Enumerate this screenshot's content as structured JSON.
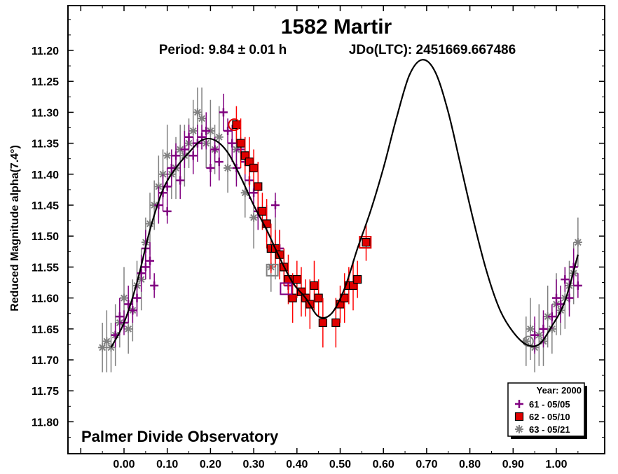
{
  "chart_data": {
    "type": "scatter",
    "title": "1582 Martir",
    "period_label": "Period: 9.84 ± 0.01 h",
    "jdo_label": "JDo(LTC): 2451669.667486",
    "ylabel": "Reduced Magnitude alpha(7.4°)",
    "xlabel": "",
    "footer": "Palmer Divide Observatory",
    "xlim": [
      -0.13,
      1.09
    ],
    "ylim": [
      11.85,
      11.14
    ],
    "xticks": [
      0.0,
      0.1,
      0.2,
      0.3,
      0.4,
      0.5,
      0.6,
      0.7,
      0.8,
      0.9,
      1.0
    ],
    "xtick_labels": [
      "0.00",
      "0.10",
      "0.20",
      "0.30",
      "0.40",
      "0.50",
      "0.60",
      "0.70",
      "0.80",
      "0.90",
      "1.00"
    ],
    "yticks": [
      11.2,
      11.25,
      11.3,
      11.35,
      11.4,
      11.45,
      11.5,
      11.55,
      11.6,
      11.65,
      11.7,
      11.75,
      11.8
    ],
    "ytick_labels": [
      "11.20",
      "11.25",
      "11.30",
      "11.35",
      "11.40",
      "11.45",
      "11.50",
      "11.55",
      "11.60",
      "11.65",
      "11.70",
      "11.75",
      "11.80"
    ],
    "legend": {
      "title": "Year: 2000",
      "position": "bottom-right",
      "entries": [
        {
          "label": "61 - 05/05",
          "marker": "plus",
          "color": "#800080"
        },
        {
          "label": "62 - 05/10",
          "marker": "square",
          "color": "#e00000"
        },
        {
          "label": "63 - 05/21",
          "marker": "asterisk",
          "color": "#808080"
        }
      ]
    },
    "fit_curve": {
      "name": "Fourier fit",
      "color": "#000000",
      "x": [
        -0.03,
        0.0,
        0.03,
        0.06,
        0.09,
        0.12,
        0.15,
        0.18,
        0.21,
        0.24,
        0.27,
        0.3,
        0.33,
        0.36,
        0.39,
        0.42,
        0.45,
        0.48,
        0.51,
        0.54,
        0.57,
        0.6,
        0.63,
        0.66,
        0.69,
        0.72,
        0.75,
        0.78,
        0.81,
        0.84,
        0.87,
        0.9,
        0.93,
        0.96,
        0.99,
        1.02,
        1.05
      ],
      "y": [
        11.68,
        11.64,
        11.575,
        11.49,
        11.425,
        11.39,
        11.365,
        11.345,
        11.345,
        11.365,
        11.405,
        11.45,
        11.49,
        11.535,
        11.575,
        11.6,
        11.63,
        11.625,
        11.585,
        11.52,
        11.46,
        11.39,
        11.31,
        11.24,
        11.215,
        11.235,
        11.3,
        11.39,
        11.48,
        11.56,
        11.62,
        11.655,
        11.675,
        11.675,
        11.645,
        11.605,
        11.53
      ]
    },
    "series": [
      {
        "name": "61 - 05/05",
        "marker": "plus",
        "color": "#800080",
        "x": [
          -0.02,
          -0.01,
          0.0,
          0.01,
          0.02,
          0.03,
          0.04,
          0.05,
          0.05,
          0.06,
          0.07,
          0.08,
          0.09,
          0.1,
          0.1,
          0.11,
          0.12,
          0.13,
          0.14,
          0.15,
          0.16,
          0.17,
          0.18,
          0.19,
          0.2,
          0.21,
          0.22,
          0.23,
          0.24,
          0.25,
          0.26,
          0.27,
          0.28,
          0.29,
          0.3,
          0.31,
          0.33,
          0.35,
          0.36,
          0.37,
          0.38,
          0.95,
          0.97,
          0.99,
          1.0,
          1.01,
          1.02,
          1.03,
          1.04,
          1.05
        ],
        "y": [
          11.66,
          11.63,
          11.64,
          11.61,
          11.62,
          11.6,
          11.56,
          11.55,
          11.52,
          11.54,
          11.58,
          11.45,
          11.43,
          11.46,
          11.42,
          11.39,
          11.37,
          11.41,
          11.36,
          11.34,
          11.37,
          11.35,
          11.34,
          11.33,
          11.39,
          11.36,
          11.38,
          11.3,
          11.33,
          11.35,
          11.39,
          11.36,
          11.38,
          11.41,
          11.43,
          11.46,
          11.48,
          11.45,
          11.52,
          11.55,
          11.58,
          11.66,
          11.65,
          11.63,
          11.6,
          11.61,
          11.57,
          11.6,
          11.55,
          11.58
        ],
        "err": [
          0.02,
          0.03,
          0.02,
          0.03,
          0.02,
          0.03,
          0.03,
          0.02,
          0.03,
          0.03,
          0.02,
          0.03,
          0.03,
          0.02,
          0.03,
          0.03,
          0.02,
          0.03,
          0.03,
          0.02,
          0.03,
          0.03,
          0.02,
          0.03,
          0.03,
          0.02,
          0.03,
          0.03,
          0.02,
          0.03,
          0.03,
          0.02,
          0.03,
          0.03,
          0.02,
          0.03,
          0.03,
          0.02,
          0.03,
          0.03,
          0.02,
          0.03,
          0.03,
          0.02,
          0.03,
          0.03,
          0.02,
          0.03,
          0.03,
          0.02
        ]
      },
      {
        "name": "62 - 05/10",
        "marker": "square",
        "color": "#e00000",
        "x": [
          0.26,
          0.27,
          0.28,
          0.29,
          0.3,
          0.31,
          0.32,
          0.33,
          0.34,
          0.35,
          0.36,
          0.37,
          0.38,
          0.39,
          0.4,
          0.41,
          0.42,
          0.43,
          0.44,
          0.45,
          0.46,
          0.49,
          0.5,
          0.51,
          0.52,
          0.53,
          0.54,
          0.56
        ],
        "y": [
          11.32,
          11.35,
          11.37,
          11.38,
          11.39,
          11.42,
          11.46,
          11.48,
          11.52,
          11.52,
          11.53,
          11.55,
          11.57,
          11.6,
          11.57,
          11.59,
          11.6,
          11.61,
          11.58,
          11.6,
          11.64,
          11.64,
          11.61,
          11.6,
          11.58,
          11.58,
          11.57,
          11.51
        ],
        "err": [
          0.03,
          0.04,
          0.03,
          0.04,
          0.03,
          0.04,
          0.03,
          0.04,
          0.04,
          0.03,
          0.04,
          0.03,
          0.04,
          0.04,
          0.03,
          0.04,
          0.03,
          0.04,
          0.04,
          0.03,
          0.04,
          0.04,
          0.03,
          0.04,
          0.03,
          0.04,
          0.03,
          0.03
        ]
      },
      {
        "name": "63 - 05/21",
        "marker": "asterisk",
        "color": "#808080",
        "x": [
          -0.05,
          -0.04,
          -0.03,
          -0.02,
          -0.01,
          0.0,
          0.01,
          0.02,
          0.03,
          0.04,
          0.05,
          0.06,
          0.07,
          0.08,
          0.09,
          0.1,
          0.11,
          0.12,
          0.13,
          0.14,
          0.15,
          0.16,
          0.17,
          0.18,
          0.19,
          0.2,
          0.21,
          0.22,
          0.24,
          0.26,
          0.28,
          0.3,
          0.34,
          0.35,
          0.93,
          0.94,
          0.95,
          0.96,
          0.97,
          0.98,
          0.99,
          1.0,
          1.01,
          1.02,
          1.03,
          1.04,
          1.05
        ],
        "y": [
          11.68,
          11.67,
          11.68,
          11.66,
          11.64,
          11.6,
          11.65,
          11.62,
          11.58,
          11.57,
          11.51,
          11.48,
          11.45,
          11.42,
          11.4,
          11.37,
          11.4,
          11.39,
          11.36,
          11.37,
          11.35,
          11.33,
          11.3,
          11.31,
          11.35,
          11.33,
          11.36,
          11.34,
          11.39,
          11.36,
          11.43,
          11.47,
          11.55,
          11.52,
          11.67,
          11.65,
          11.68,
          11.66,
          11.67,
          11.63,
          11.65,
          11.61,
          11.62,
          11.6,
          11.58,
          11.56,
          11.51
        ],
        "err": [
          0.04,
          0.05,
          0.04,
          0.05,
          0.04,
          0.05,
          0.04,
          0.05,
          0.04,
          0.05,
          0.04,
          0.05,
          0.04,
          0.05,
          0.04,
          0.05,
          0.04,
          0.05,
          0.04,
          0.05,
          0.04,
          0.05,
          0.04,
          0.05,
          0.04,
          0.05,
          0.04,
          0.05,
          0.04,
          0.05,
          0.04,
          0.05,
          0.04,
          0.05,
          0.04,
          0.05,
          0.04,
          0.05,
          0.04,
          0.05,
          0.04,
          0.05,
          0.04,
          0.05,
          0.04,
          0.05,
          0.04
        ]
      }
    ]
  }
}
